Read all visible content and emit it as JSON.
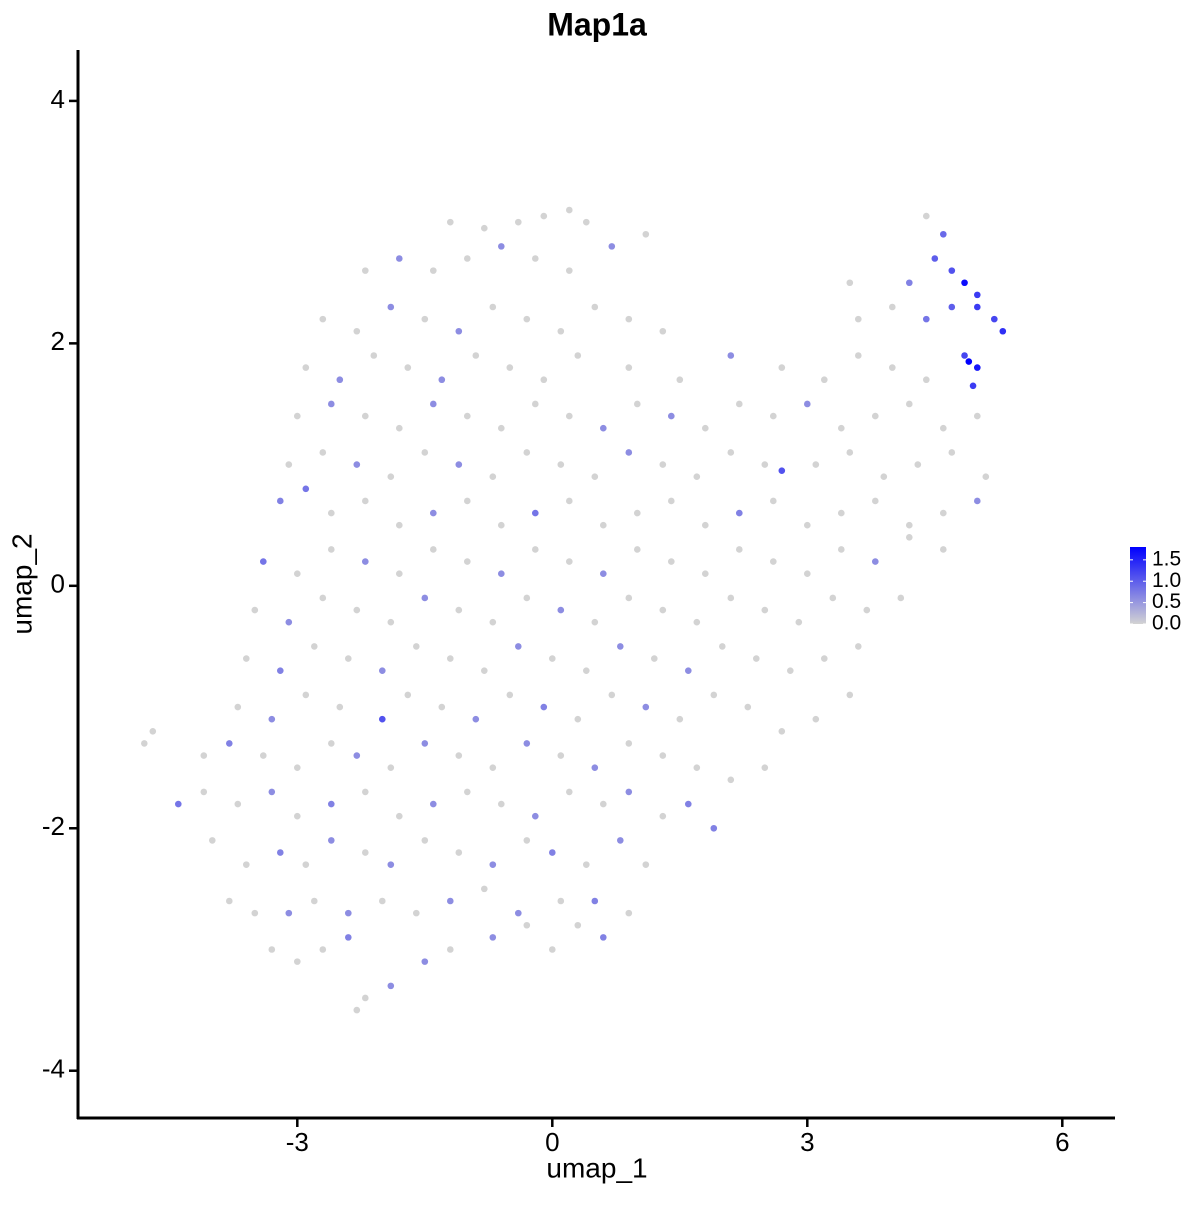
{
  "chart_data": {
    "type": "scatter",
    "title": "Map1a",
    "xlabel": "umap_1",
    "ylabel": "umap_2",
    "xlim": [
      -5.58,
      6.62
    ],
    "ylim": [
      -4.39,
      4.42
    ],
    "xticks": [
      -3,
      0,
      3,
      6
    ],
    "yticks": [
      -4,
      -2,
      0,
      2,
      4
    ],
    "x": [
      -2.3,
      -2.2,
      -1.9,
      -3.3,
      -3.0,
      -2.7,
      -2.4,
      -1.5,
      -1.2,
      -0.7,
      -0.3,
      0.0,
      0.6,
      0.3,
      -3.8,
      -3.5,
      -3.1,
      -2.8,
      -2.4,
      -2.0,
      -1.6,
      -1.2,
      -0.8,
      -0.4,
      0.1,
      0.5,
      0.9,
      -4.0,
      -3.6,
      -3.2,
      -2.9,
      -2.6,
      -2.2,
      -1.9,
      -1.5,
      -1.1,
      -0.7,
      -0.3,
      0.0,
      0.4,
      0.8,
      1.1,
      -4.4,
      -4.1,
      -3.7,
      -3.3,
      -3.0,
      -2.6,
      -2.2,
      -1.8,
      -1.4,
      -1.0,
      -0.6,
      -0.2,
      0.2,
      0.6,
      0.9,
      1.3,
      1.6,
      1.9,
      -4.1,
      -3.8,
      -3.4,
      -3.0,
      -2.6,
      -2.3,
      -1.9,
      -1.5,
      -1.1,
      -0.7,
      -0.3,
      0.1,
      0.5,
      0.9,
      1.3,
      1.7,
      2.1,
      2.5,
      -4.8,
      -4.7,
      -3.7,
      -3.3,
      -2.9,
      -2.5,
      -2.0,
      -1.7,
      -1.3,
      -0.9,
      -0.5,
      -0.1,
      0.3,
      0.7,
      1.1,
      1.5,
      1.9,
      2.3,
      2.7,
      3.1,
      3.5,
      -3.6,
      -3.2,
      -2.8,
      -2.4,
      -2.0,
      -1.6,
      -1.2,
      -0.8,
      -0.4,
      0.0,
      0.4,
      0.8,
      1.2,
      1.6,
      2.0,
      2.4,
      2.8,
      3.2,
      3.6,
      -3.5,
      -3.1,
      -2.7,
      -2.3,
      -1.9,
      -1.5,
      -1.1,
      -0.7,
      -0.3,
      0.1,
      0.5,
      0.9,
      1.3,
      1.7,
      2.1,
      2.5,
      2.9,
      3.3,
      3.7,
      4.1,
      -3.4,
      -3.0,
      -2.6,
      -2.2,
      -1.8,
      -1.4,
      -1.0,
      -0.6,
      -0.2,
      0.2,
      0.6,
      1.0,
      1.4,
      1.8,
      2.2,
      2.6,
      3.0,
      3.4,
      3.8,
      4.2,
      4.6,
      -3.2,
      -2.9,
      -2.6,
      -2.2,
      -1.8,
      -1.4,
      -1.0,
      -0.6,
      -0.2,
      0.2,
      0.6,
      1.0,
      1.4,
      1.8,
      2.2,
      2.6,
      3.0,
      3.4,
      3.8,
      4.2,
      4.6,
      5.0,
      -3.1,
      -2.7,
      -2.3,
      -1.9,
      -1.5,
      -1.1,
      -0.7,
      -0.3,
      0.1,
      0.5,
      0.9,
      1.3,
      1.7,
      2.1,
      2.5,
      2.7,
      3.1,
      3.5,
      3.9,
      4.3,
      4.7,
      5.1,
      -3.0,
      -2.6,
      -2.2,
      -1.8,
      -1.4,
      -1.0,
      -0.6,
      -0.2,
      0.2,
      0.6,
      1.0,
      1.4,
      1.8,
      2.2,
      2.6,
      3.0,
      3.4,
      3.8,
      4.2,
      4.6,
      5.0,
      -2.9,
      -2.5,
      -2.1,
      -1.7,
      -1.3,
      -0.9,
      -0.5,
      -0.1,
      0.3,
      0.9,
      1.5,
      2.1,
      2.7,
      3.2,
      3.6,
      4.0,
      4.4,
      4.9,
      5.0,
      4.95,
      4.85,
      -2.7,
      -2.3,
      -1.9,
      -1.5,
      -1.1,
      -0.7,
      -0.3,
      0.1,
      0.5,
      0.9,
      1.3,
      3.6,
      4.0,
      4.4,
      4.7,
      5.0,
      5.2,
      5.3,
      -2.2,
      -1.8,
      -1.4,
      -1.0,
      -0.6,
      -0.2,
      0.2,
      0.7,
      1.1,
      3.5,
      4.2,
      4.5,
      4.7,
      4.85,
      5.0,
      4.6,
      -1.2,
      -0.8,
      -0.4,
      -0.1,
      0.2,
      0.4,
      4.4
    ],
    "values": [
      -3.5,
      -3.4,
      -3.3,
      -3.0,
      -3.1,
      -3.0,
      -2.9,
      -3.1,
      -3.0,
      -2.9,
      -2.8,
      -3.0,
      -2.9,
      -2.8,
      -2.6,
      -2.7,
      -2.7,
      -2.6,
      -2.7,
      -2.6,
      -2.7,
      -2.6,
      -2.5,
      -2.7,
      -2.6,
      -2.6,
      -2.7,
      -2.1,
      -2.3,
      -2.2,
      -2.3,
      -2.1,
      -2.2,
      -2.3,
      -2.1,
      -2.2,
      -2.3,
      -2.1,
      -2.2,
      -2.3,
      -2.1,
      -2.3,
      -1.8,
      -1.7,
      -1.8,
      -1.7,
      -1.9,
      -1.8,
      -1.7,
      -1.9,
      -1.8,
      -1.7,
      -1.8,
      -1.9,
      -1.7,
      -1.8,
      -1.7,
      -1.9,
      -1.8,
      -2.0,
      -1.4,
      -1.3,
      -1.4,
      -1.5,
      -1.3,
      -1.4,
      -1.5,
      -1.3,
      -1.4,
      -1.5,
      -1.3,
      -1.4,
      -1.5,
      -1.3,
      -1.4,
      -1.5,
      -1.6,
      -1.5,
      -1.3,
      -1.2,
      -1.0,
      -1.1,
      -0.9,
      -1.0,
      -1.1,
      -0.9,
      -1.0,
      -1.1,
      -0.9,
      -1.0,
      -1.1,
      -0.9,
      -1.0,
      -1.1,
      -0.9,
      -1.0,
      -1.2,
      -1.1,
      -0.9,
      -0.6,
      -0.7,
      -0.5,
      -0.6,
      -0.7,
      -0.5,
      -0.6,
      -0.7,
      -0.5,
      -0.6,
      -0.7,
      -0.5,
      -0.6,
      -0.7,
      -0.5,
      -0.6,
      -0.7,
      -0.6,
      -0.5,
      -0.2,
      -0.3,
      -0.1,
      -0.2,
      -0.3,
      -0.1,
      -0.2,
      -0.3,
      -0.1,
      -0.2,
      -0.3,
      -0.1,
      -0.2,
      -0.3,
      -0.1,
      -0.2,
      -0.3,
      -0.1,
      -0.2,
      -0.1,
      0.2,
      0.1,
      0.3,
      0.2,
      0.1,
      0.3,
      0.2,
      0.1,
      0.3,
      0.2,
      0.1,
      0.3,
      0.2,
      0.1,
      0.3,
      0.2,
      0.1,
      0.3,
      0.2,
      0.4,
      0.3,
      0.7,
      0.8,
      0.6,
      0.7,
      0.5,
      0.6,
      0.7,
      0.5,
      0.6,
      0.7,
      0.5,
      0.6,
      0.7,
      0.5,
      0.6,
      0.7,
      0.5,
      0.6,
      0.7,
      0.5,
      0.6,
      0.7,
      1.0,
      1.1,
      1.0,
      0.9,
      1.1,
      1.0,
      0.9,
      1.1,
      1.0,
      0.9,
      1.1,
      1.0,
      0.9,
      1.1,
      1.0,
      0.95,
      1.0,
      1.1,
      0.9,
      1.0,
      1.1,
      0.9,
      1.4,
      1.5,
      1.4,
      1.3,
      1.5,
      1.4,
      1.3,
      1.5,
      1.4,
      1.3,
      1.5,
      1.4,
      1.3,
      1.5,
      1.4,
      1.5,
      1.3,
      1.4,
      1.5,
      1.3,
      1.4,
      1.8,
      1.7,
      1.9,
      1.8,
      1.7,
      1.9,
      1.8,
      1.7,
      1.9,
      1.8,
      1.7,
      1.9,
      1.8,
      1.7,
      1.9,
      1.8,
      1.7,
      1.85,
      1.8,
      1.65,
      1.9,
      2.2,
      2.1,
      2.3,
      2.2,
      2.1,
      2.3,
      2.2,
      2.1,
      2.3,
      2.2,
      2.1,
      2.2,
      2.3,
      2.2,
      2.3,
      2.3,
      2.2,
      2.1,
      2.6,
      2.7,
      2.6,
      2.7,
      2.8,
      2.7,
      2.6,
      2.8,
      2.9,
      2.5,
      2.5,
      2.7,
      2.6,
      2.5,
      2.4,
      2.9,
      3.0,
      2.95,
      3.0,
      3.05,
      3.1,
      3.0,
      3.05
    ],
    "color_values": [
      0,
      0,
      0.6,
      0,
      0,
      0,
      0.7,
      0.6,
      0,
      0.6,
      0,
      0,
      0.7,
      0,
      0,
      0,
      0.6,
      0,
      0.6,
      0,
      0,
      0.6,
      0,
      0.6,
      0,
      0.7,
      0,
      0,
      0,
      0.7,
      0,
      0.6,
      0,
      0.6,
      0,
      0,
      0.6,
      0,
      0.7,
      0,
      0.6,
      0,
      0.8,
      0,
      0,
      0.6,
      0,
      0.7,
      0,
      0,
      0.6,
      0,
      0,
      0.6,
      0,
      0,
      0.6,
      0,
      0.7,
      0.7,
      0,
      0.7,
      0,
      0,
      0,
      0.6,
      0,
      0.6,
      0,
      0,
      0.6,
      0,
      0.6,
      0,
      0,
      0,
      0,
      0,
      0,
      0,
      0,
      0.6,
      0,
      0,
      1.1,
      0,
      0,
      0.6,
      0,
      0.7,
      0,
      0,
      0.6,
      0,
      0,
      0,
      0,
      0,
      0,
      0,
      0.7,
      0,
      0,
      0.6,
      0,
      0,
      0,
      0.6,
      0,
      0,
      0.6,
      0,
      0.6,
      0,
      0,
      0,
      0,
      0,
      0,
      0.6,
      0,
      0,
      0,
      0.6,
      0,
      0,
      0,
      0.6,
      0,
      0,
      0,
      0,
      0,
      0,
      0,
      0,
      0,
      0,
      0.8,
      0,
      0,
      0.6,
      0,
      0,
      0,
      0.6,
      0,
      0,
      0.6,
      0,
      0,
      0,
      0,
      0,
      0,
      0,
      0.6,
      0,
      0,
      0.7,
      0.8,
      0,
      0,
      0,
      0.6,
      0,
      0,
      0.8,
      0,
      0,
      0,
      0,
      0,
      0.7,
      0,
      0,
      0,
      0,
      0,
      0,
      0.6,
      0,
      0,
      0.6,
      0,
      0,
      0.6,
      0,
      0,
      0,
      0,
      0.6,
      0,
      0,
      0,
      0,
      1.1,
      0,
      0,
      0,
      0,
      0,
      0,
      0,
      0.6,
      0,
      0,
      0.6,
      0,
      0,
      0,
      0,
      0.6,
      0,
      0.6,
      0,
      0,
      0,
      0.6,
      0,
      0,
      0,
      0,
      0,
      0,
      0.6,
      0,
      0,
      0.6,
      0,
      0,
      0,
      0,
      0,
      0,
      0.6,
      0,
      0,
      0,
      0,
      0,
      1.8,
      1.6,
      1.3,
      1.2,
      0,
      0,
      0.6,
      0,
      0.6,
      0,
      0,
      0,
      0,
      0,
      0,
      0,
      0,
      0.8,
      1.0,
      1.3,
      1.2,
      1.4,
      0,
      0.6,
      0,
      0,
      0.6,
      0,
      0,
      0.6,
      0,
      0,
      0.7,
      1.0,
      1.1,
      1.7,
      1.3,
      0.9,
      0,
      0,
      0,
      0,
      0,
      0,
      0
    ],
    "colorbar": {
      "lim": [
        0,
        1.8
      ],
      "low": "#d3d3d3",
      "high": "#0000ff",
      "ticks": [
        {
          "value": 0,
          "label": "0.0"
        },
        {
          "value": 0.5,
          "label": "0.5"
        },
        {
          "value": 1,
          "label": "1.0"
        },
        {
          "value": 1.5,
          "label": "1.5"
        }
      ]
    }
  }
}
